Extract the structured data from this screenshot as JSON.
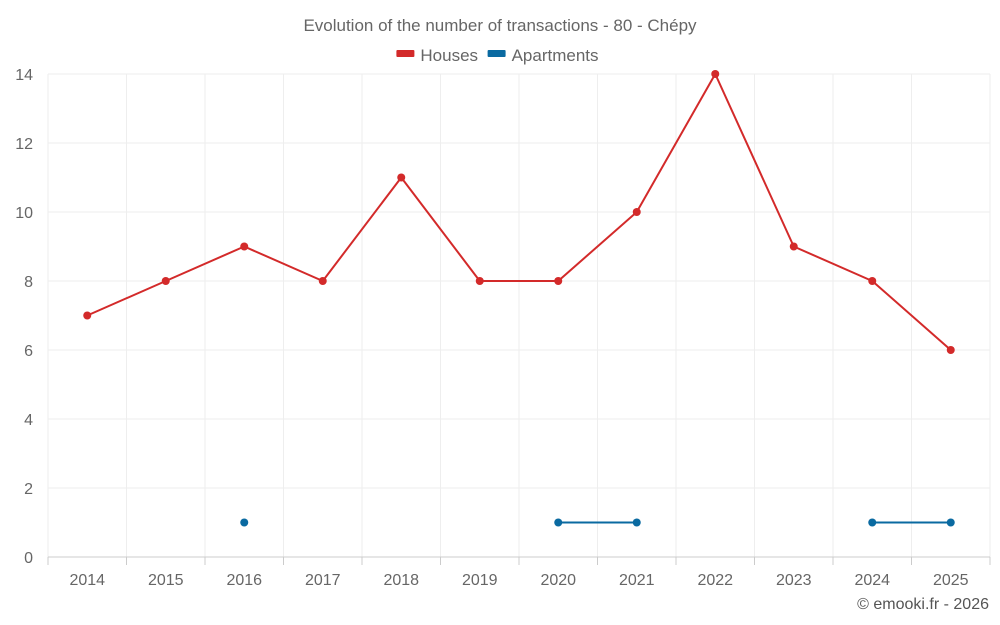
{
  "chart_data": {
    "type": "line",
    "title": "Evolution of the number of transactions - 80 - Chépy",
    "categories": [
      "2014",
      "2015",
      "2016",
      "2017",
      "2018",
      "2019",
      "2020",
      "2021",
      "2022",
      "2023",
      "2024",
      "2025"
    ],
    "series": [
      {
        "name": "Houses",
        "color": "#d32a2a",
        "values": [
          7,
          8,
          9,
          8,
          11,
          8,
          8,
          10,
          14,
          9,
          8,
          6
        ]
      },
      {
        "name": "Apartments",
        "color": "#0a6aa1",
        "values": [
          null,
          null,
          1,
          null,
          null,
          null,
          1,
          1,
          null,
          null,
          1,
          1
        ]
      }
    ],
    "ylim": [
      0,
      14
    ],
    "yticks": [
      0,
      2,
      4,
      6,
      8,
      10,
      12,
      14
    ],
    "xlabel": "",
    "ylabel": "",
    "grid": true,
    "legend": "top-center"
  },
  "credit": "© emooki.fr - 2026"
}
